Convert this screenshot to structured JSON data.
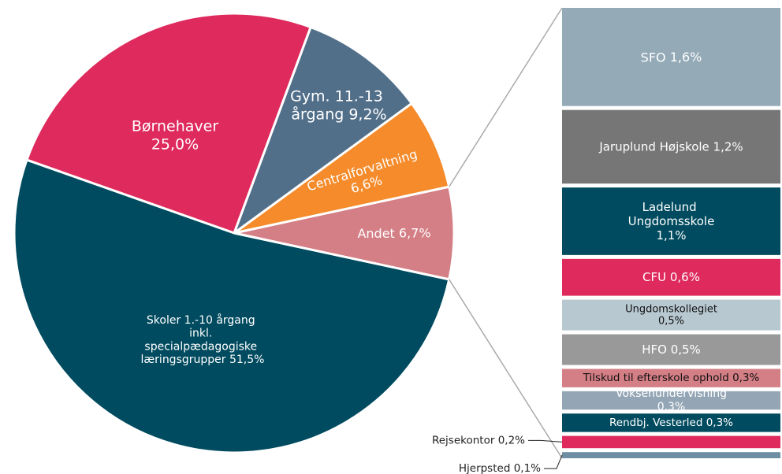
{
  "chart_data": [
    {
      "type": "pie",
      "categories": [
        "Andet",
        "Centralforvaltning",
        "Gym. 11.-13 årgang",
        "Børnehaver",
        "Skoler 1.-10 årgang inkl. specialpædagogiske læringsgrupper"
      ],
      "values": [
        6.7,
        6.6,
        9.2,
        25.0,
        51.5
      ],
      "value_labels": [
        "6,7%",
        "6,6%",
        "9,2%",
        "25,0%",
        "51,5%"
      ],
      "colors": [
        "#d47f86",
        "#f58b2a",
        "#526f8a",
        "#de2a5c",
        "#004b5f"
      ]
    },
    {
      "type": "stacked_bar",
      "categories": [
        "SFO",
        "Jaruplund Højskole",
        "Ladelund Ungdomsskole",
        "CFU",
        "Ungdomskollegiet",
        "HFO",
        "Tilskud til efterskole ophold",
        "Voksenundervisning",
        "Rendbj. Vesterled",
        "Rejsekontor",
        "Hjerpsted"
      ],
      "values": [
        1.6,
        1.2,
        1.1,
        0.6,
        0.5,
        0.5,
        0.3,
        0.3,
        0.3,
        0.2,
        0.1
      ],
      "value_labels": [
        "1,6%",
        "1,2%",
        "1,1%",
        "0,6%",
        "0,5%",
        "0,5%",
        "0,3%",
        "0,3%",
        "0,3%",
        "0,2%",
        "0,1%"
      ],
      "colors": [
        "#94aab7",
        "#767676",
        "#004b5f",
        "#de2a5c",
        "#b8c8d1",
        "#999999",
        "#d47f86",
        "#94a6b5",
        "#004b5f",
        "#de2a5c",
        "#6d8ea3"
      ]
    }
  ]
}
